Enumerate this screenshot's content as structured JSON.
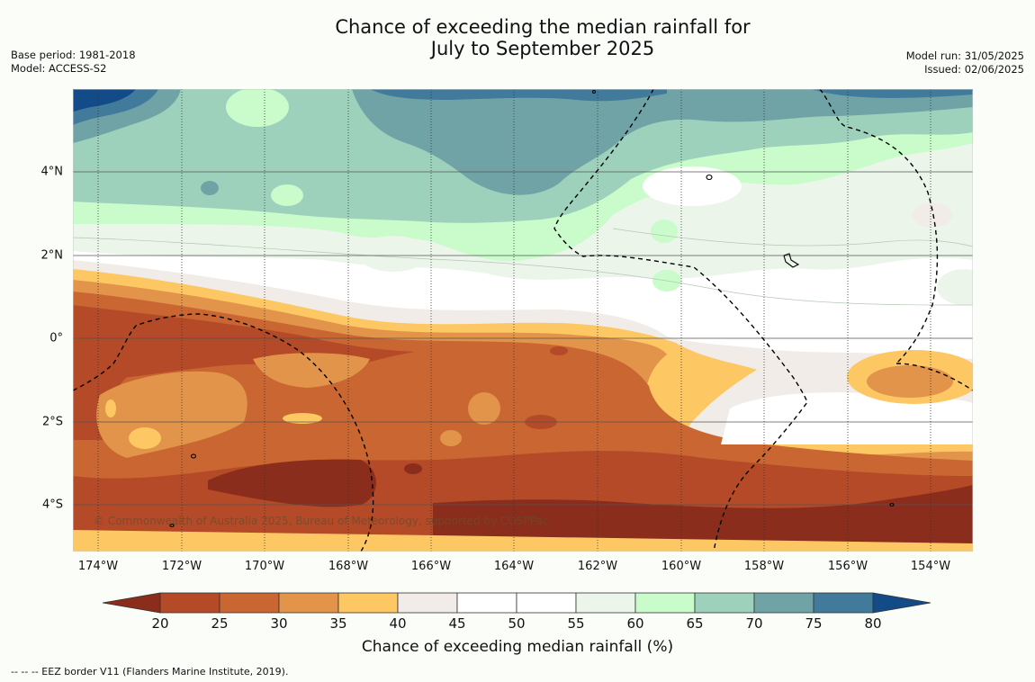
{
  "title": {
    "line1": "Chance of exceeding the median rainfall for",
    "line2": "July to September 2025"
  },
  "meta": {
    "base_period": "Base period: 1981-2018",
    "model": "Model: ACCESS-S2",
    "model_run": "Model run: 31/05/2025",
    "issued": "Issued: 02/06/2025"
  },
  "copyright": "© Commonwealth of Australia 2025, Bureau of Meteorology, supported by COSPPac",
  "footnote": "--  --  -- EEZ border V11 (Flanders Marine Institute, 2019).",
  "axes": {
    "x_ticks": [
      "174°W",
      "172°W",
      "170°W",
      "168°W",
      "166°W",
      "164°W",
      "162°W",
      "160°W",
      "158°W",
      "156°W",
      "154°W"
    ],
    "y_ticks": [
      "4°N",
      "2°N",
      "0°",
      "2°S",
      "4°S"
    ]
  },
  "legend": {
    "title": "Chance of exceeding median rainfall (%)",
    "ticks": [
      "20",
      "25",
      "30",
      "35",
      "40",
      "45",
      "50",
      "55",
      "60",
      "65",
      "70",
      "75",
      "80"
    ],
    "colors": [
      "#8b2d1c",
      "#b44a27",
      "#c96632",
      "#e1944a",
      "#fdc764",
      "#f1ece8",
      "#ffffff",
      "#ffffff",
      "#ebf5ea",
      "#c9fbcb",
      "#9dd1bb",
      "#6fa3a6",
      "#427a9b",
      "#124b88"
    ]
  },
  "colors": {
    "eez_border": "#000000",
    "gridline": "#555555"
  }
}
